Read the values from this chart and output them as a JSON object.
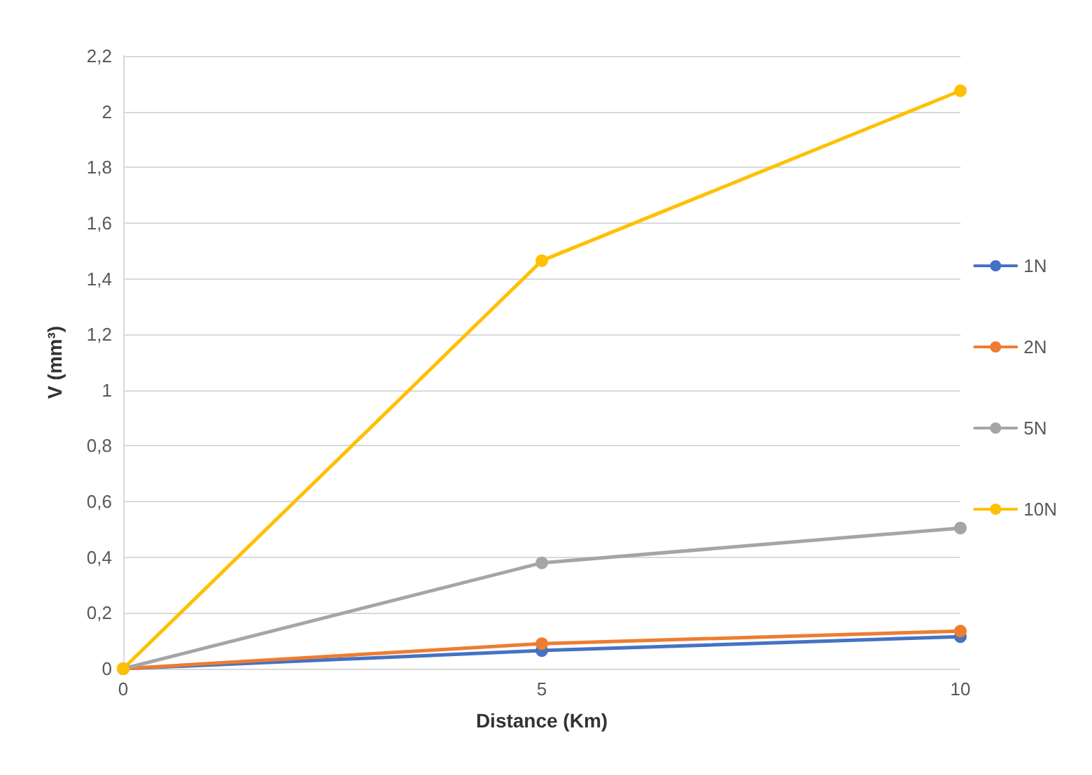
{
  "chart_data": {
    "type": "line",
    "xlabel": "Distance (Km)",
    "ylabel": "V (mm³)",
    "x": [
      0,
      5,
      10
    ],
    "xlim": [
      0,
      10
    ],
    "xticks": [
      0,
      5,
      10
    ],
    "ylim": [
      0,
      2.2
    ],
    "yticks": [
      0,
      {
        "value": 0.2,
        "label": "0,2"
      },
      {
        "value": 0.4,
        "label": "0,4"
      },
      {
        "value": 0.6,
        "label": "0,6"
      },
      {
        "value": 0.8,
        "label": "0,8"
      },
      1,
      {
        "value": 1.2,
        "label": "1,2"
      },
      {
        "value": 1.4,
        "label": "1,4"
      },
      {
        "value": 1.6,
        "label": "1,6"
      },
      {
        "value": 1.8,
        "label": "1,8"
      },
      2,
      {
        "value": 2.2,
        "label": "2,2"
      }
    ],
    "series": [
      {
        "name": "1N",
        "color": "#4472c4",
        "values": [
          0,
          0.065,
          0.115
        ]
      },
      {
        "name": "2N",
        "color": "#ed7d31",
        "values": [
          0,
          0.09,
          0.135
        ]
      },
      {
        "name": "5N",
        "color": "#a5a5a5",
        "values": [
          0,
          0.38,
          0.505
        ]
      },
      {
        "name": "10N",
        "color": "#ffc000",
        "values": [
          0,
          1.465,
          2.075
        ]
      }
    ],
    "grid": "y",
    "legend": "right",
    "marker": "circle",
    "line_style": "solid"
  }
}
